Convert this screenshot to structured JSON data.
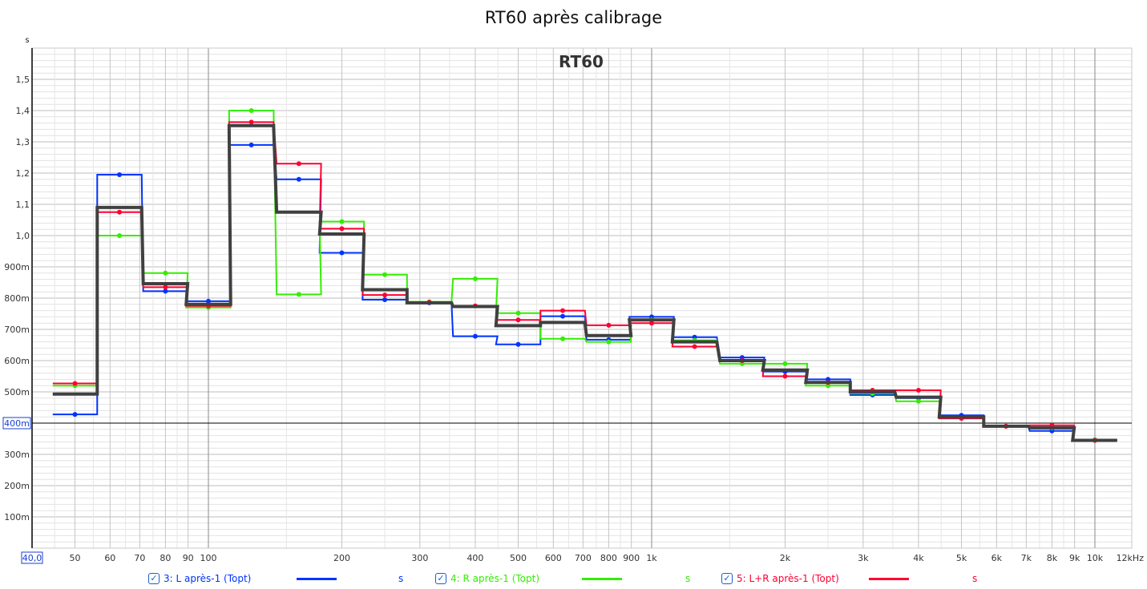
{
  "title": "RT60 après calibrage",
  "chart_data": {
    "type": "line",
    "title": "RT60",
    "ylabel": "s",
    "xlabel": "",
    "xscale": "log",
    "xlim": [
      40,
      12000
    ],
    "ylim": [
      0,
      1.6
    ],
    "grid": true,
    "step": true,
    "y_ticks": [
      {
        "v": 0.1,
        "label": "100m"
      },
      {
        "v": 0.2,
        "label": "200m"
      },
      {
        "v": 0.3,
        "label": "300m"
      },
      {
        "v": 0.5,
        "label": "500m"
      },
      {
        "v": 0.6,
        "label": "600m"
      },
      {
        "v": 0.7,
        "label": "700m"
      },
      {
        "v": 0.8,
        "label": "800m"
      },
      {
        "v": 0.9,
        "label": "900m"
      },
      {
        "v": 1.0,
        "label": "1,0"
      },
      {
        "v": 1.1,
        "label": "1,1"
      },
      {
        "v": 1.2,
        "label": "1,2"
      },
      {
        "v": 1.3,
        "label": "1,3"
      },
      {
        "v": 1.4,
        "label": "1,4"
      },
      {
        "v": 1.5,
        "label": "1,5"
      }
    ],
    "x_ticks": [
      {
        "v": 50,
        "label": "50"
      },
      {
        "v": 60,
        "label": "60"
      },
      {
        "v": 70,
        "label": "70"
      },
      {
        "v": 80,
        "label": "80"
      },
      {
        "v": 90,
        "label": "90"
      },
      {
        "v": 100,
        "label": "100"
      },
      {
        "v": 200,
        "label": "200"
      },
      {
        "v": 300,
        "label": "300"
      },
      {
        "v": 400,
        "label": "400"
      },
      {
        "v": 500,
        "label": "500"
      },
      {
        "v": 600,
        "label": "600"
      },
      {
        "v": 700,
        "label": "700"
      },
      {
        "v": 800,
        "label": "800"
      },
      {
        "v": 900,
        "label": "900"
      },
      {
        "v": 1000,
        "label": "1k"
      },
      {
        "v": 2000,
        "label": "2k"
      },
      {
        "v": 3000,
        "label": "3k"
      },
      {
        "v": 4000,
        "label": "4k"
      },
      {
        "v": 5000,
        "label": "5k"
      },
      {
        "v": 6000,
        "label": "6k"
      },
      {
        "v": 7000,
        "label": "7k"
      },
      {
        "v": 8000,
        "label": "8k"
      },
      {
        "v": 9000,
        "label": "9k"
      },
      {
        "v": 10000,
        "label": "10k"
      },
      {
        "v": 12000,
        "label": "12kHz"
      }
    ],
    "cursor": {
      "x_label": "40,0",
      "y": 0.4,
      "y_label": "400m"
    },
    "x": [
      50,
      63,
      80,
      100,
      125,
      160,
      200,
      250,
      315,
      400,
      500,
      630,
      800,
      1000,
      1250,
      1600,
      2000,
      2500,
      3150,
      4000,
      5000,
      6300,
      8000,
      10000
    ],
    "series": [
      {
        "name": "3: L après-1 (Topt)",
        "unit": "s",
        "color": "#0033ff",
        "values": [
          0.428,
          1.195,
          0.822,
          0.79,
          1.29,
          1.18,
          0.945,
          0.795,
          0.785,
          0.678,
          0.652,
          0.742,
          0.667,
          0.74,
          0.675,
          0.61,
          0.565,
          0.54,
          0.49,
          0.48,
          0.425,
          0.39,
          0.375,
          0.345
        ]
      },
      {
        "name": "4: R après-1 (Topt)",
        "unit": "s",
        "color": "#33ee00",
        "values": [
          0.52,
          1.0,
          0.88,
          0.77,
          1.4,
          0.812,
          1.045,
          0.875,
          0.788,
          0.862,
          0.752,
          0.67,
          0.66,
          0.73,
          0.665,
          0.59,
          0.59,
          0.52,
          0.495,
          0.47,
          0.415,
          0.39,
          0.385,
          0.347
        ]
      },
      {
        "name": "5: L+R après-1 (Topt)",
        "unit": "s",
        "color": "#ff0033",
        "values": [
          0.527,
          1.075,
          0.835,
          0.775,
          1.363,
          1.23,
          1.022,
          0.81,
          0.787,
          0.775,
          0.73,
          0.76,
          0.713,
          0.72,
          0.645,
          0.6,
          0.55,
          0.53,
          0.505,
          0.505,
          0.415,
          0.39,
          0.393,
          0.345
        ]
      },
      {
        "color": "#404040",
        "values": [
          0.493,
          1.09,
          0.846,
          0.78,
          1.352,
          1.075,
          1.005,
          0.827,
          0.785,
          0.773,
          0.712,
          0.722,
          0.68,
          0.73,
          0.66,
          0.6,
          0.57,
          0.53,
          0.5,
          0.483,
          0.42,
          0.39,
          0.385,
          0.345
        ]
      }
    ]
  }
}
